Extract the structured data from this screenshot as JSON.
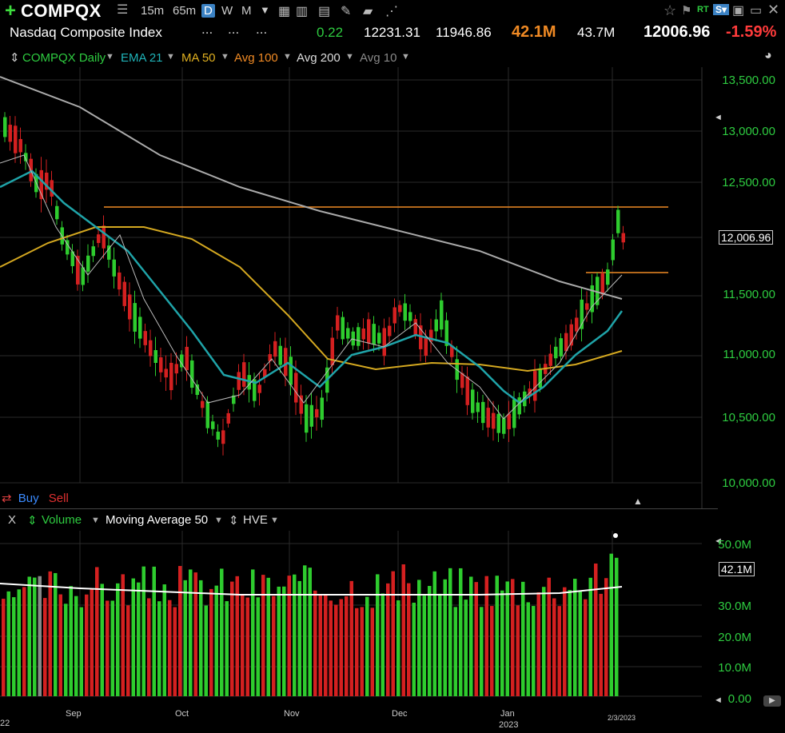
{
  "toolbar": {
    "plus_icon": "plus-icon",
    "symbol": "COMPQX",
    "timeframes": [
      "15m",
      "65m",
      "D",
      "W",
      "M"
    ],
    "active_timeframe": "D",
    "rt_label": "RT"
  },
  "quote": {
    "name": "Nasdaq Composite Index",
    "dots1": "...",
    "dots2": "...",
    "dots3": "...",
    "change_small": "0.22",
    "high": "12231.31",
    "low": "11946.86",
    "volume": "42.1M",
    "avg_volume": "43.7M",
    "last": "12006.96",
    "pct_change": "-1.59%"
  },
  "studies": {
    "main": "COMPQX Daily",
    "ema": "EMA 21",
    "ma50": "MA 50",
    "avg100": "Avg 100",
    "avg200": "Avg 200",
    "avg10": "Avg 10"
  },
  "price_axis": [
    "13,500.00",
    "13,000.00",
    "12,500.00",
    "12,006.96",
    "11,500.00",
    "11,000.00",
    "10,500.00",
    "10,000.00"
  ],
  "buy_sell": {
    "buy": "Buy",
    "sell": "Sell"
  },
  "volume_pane": {
    "close": "X",
    "volume": "Volume",
    "ma": "Moving Average 50",
    "hve": "HVE",
    "axis": [
      "50.0M",
      "42.1M",
      "30.0M",
      "20.0M",
      "10.0M",
      "0.00"
    ]
  },
  "dates": {
    "d22": "22",
    "sep": "Sep",
    "oct": "Oct",
    "nov": "Nov",
    "dec": "Dec",
    "jan": "Jan",
    "year": "2023",
    "last": "2/3/2023"
  },
  "colors": {
    "up": "#2ecc2e",
    "down": "#d42020",
    "ema21": "#1fa3a8",
    "ma50": "#d4a820",
    "avg200": "#aaaaaa",
    "avg10": "#bbbbbb",
    "resistance": "#f08a24"
  }
}
